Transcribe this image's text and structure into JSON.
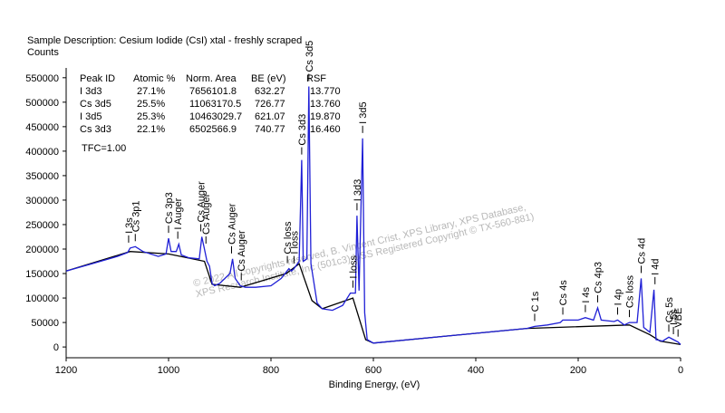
{
  "chart_data": {
    "type": "line",
    "title": "Sample Description:  Cesium Iodide (CsI)  xtal - freshly scraped",
    "y_label": "Counts",
    "x_label": "Binding Energy, (eV)",
    "xlim": [
      1200,
      0
    ],
    "xticks": [
      1200,
      1000,
      800,
      600,
      400,
      200,
      0
    ],
    "ylim": [
      -22000,
      570000
    ],
    "yticks": [
      0,
      50000,
      100000,
      150000,
      200000,
      250000,
      300000,
      350000,
      400000,
      450000,
      500000,
      550000
    ],
    "series": [
      {
        "color": "#1f1fd6",
        "x": [
          1200,
          1150,
          1100,
          1080,
          1075,
          1065,
          1050,
          1020,
          1005,
          1000,
          995,
          985,
          980,
          975,
          960,
          940,
          935,
          930,
          925,
          920,
          915,
          910,
          900,
          880,
          875,
          870,
          860,
          850,
          830,
          800,
          780,
          765,
          760,
          755,
          745,
          740,
          737,
          730,
          726,
          722,
          710,
          700,
          680,
          660,
          645,
          635,
          632,
          628,
          621,
          617,
          612,
          600,
          500,
          400,
          300,
          285,
          260,
          235,
          230,
          200,
          186,
          170,
          162,
          155,
          130,
          123,
          110,
          100,
          85,
          77,
          72,
          60,
          52,
          48,
          35,
          23,
          14,
          5,
          0
        ],
        "values": [
          155000,
          170000,
          185000,
          193000,
          202000,
          205000,
          195000,
          185000,
          190000,
          222000,
          195000,
          195000,
          210000,
          188000,
          182000,
          180000,
          225000,
          200000,
          175000,
          165000,
          130000,
          125000,
          130000,
          150000,
          180000,
          140000,
          125000,
          122000,
          122000,
          125000,
          140000,
          160000,
          155000,
          160000,
          175000,
          382000,
          175000,
          180000,
          532000,
          170000,
          90000,
          78000,
          75000,
          85000,
          110000,
          110000,
          268000,
          115000,
          426000,
          70000,
          15000,
          8000,
          18000,
          28000,
          38000,
          42000,
          45000,
          50000,
          55000,
          55000,
          60000,
          55000,
          80000,
          55000,
          52000,
          55000,
          45000,
          50000,
          50000,
          140000,
          40000,
          30000,
          117000,
          15000,
          12000,
          20000,
          15000,
          10000,
          5000
        ]
      },
      {
        "color": "#000000",
        "x": [
          1200,
          1075,
          1000,
          930,
          915,
          860,
          770,
          745,
          720,
          700,
          640,
          615,
          600,
          300,
          100,
          60,
          40,
          0
        ],
        "values": [
          155000,
          195000,
          190000,
          175000,
          128000,
          122000,
          150000,
          170000,
          95000,
          78000,
          100000,
          15000,
          8000,
          38000,
          45000,
          25000,
          12000,
          5000
        ]
      }
    ],
    "annotations": [
      {
        "label": "I 3s",
        "x": 1078
      },
      {
        "label": "Cs 3p1",
        "x": 1065
      },
      {
        "label": "Cs 3p3",
        "x": 1000
      },
      {
        "label": "I Auger",
        "x": 982
      },
      {
        "label": "Cs Auger",
        "x": 937
      },
      {
        "label": "Cs Auger",
        "x": 927
      },
      {
        "label": "Cs Auger",
        "x": 877
      },
      {
        "label": "Cs Auger",
        "x": 858
      },
      {
        "label": "Cs loss",
        "x": 768
      },
      {
        "label": "I loss",
        "x": 755
      },
      {
        "label": "Cs 3d3",
        "x": 740
      },
      {
        "label": "Cs 3d5",
        "x": 726
      },
      {
        "label": "I loss",
        "x": 640
      },
      {
        "label": "I 3d3",
        "x": 632
      },
      {
        "label": "I 3d5",
        "x": 621
      },
      {
        "label": "C 1s",
        "x": 285
      },
      {
        "label": "Cs 4s",
        "x": 230
      },
      {
        "label": "I 4s",
        "x": 186
      },
      {
        "label": "Cs 4p3",
        "x": 162
      },
      {
        "label": "I 4p",
        "x": 123
      },
      {
        "label": "Cs loss",
        "x": 100
      },
      {
        "label": "Cs 4d",
        "x": 77
      },
      {
        "label": "I 4d",
        "x": 50
      },
      {
        "label": "Cs 5s",
        "x": 23
      },
      {
        "label": "I 5s",
        "x": 14
      },
      {
        "label": "VBE",
        "x": 5
      }
    ],
    "table": {
      "columns": [
        "Peak ID",
        "Atomic %",
        "Norm. Area",
        "BE (eV)",
        "RSF"
      ],
      "rows": [
        [
          "I 3d3",
          "27.1%",
          "7656101.8",
          "632.27",
          "13.770"
        ],
        [
          "Cs 3d5",
          "25.5%",
          "11063170.5",
          "726.77",
          "13.760"
        ],
        [
          "I 3d5",
          "25.3%",
          "10463029.7",
          "621.07",
          "19.870"
        ],
        [
          "Cs 3d3",
          "22.1%",
          "6502566.9",
          "740.77",
          "16.460"
        ]
      ]
    },
    "tfc": "TFC=1.00",
    "watermark": [
      "© 2022 All copyrights reserved,   B. Vincent Crist,  XPS Library, XPS Database,",
      "XPS Research Institute, Inc (501c3)   USS Registered Copyright © TX-560-881)"
    ]
  }
}
